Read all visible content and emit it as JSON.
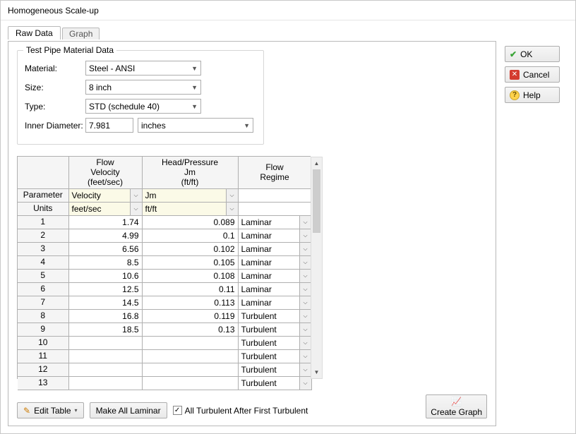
{
  "window": {
    "title": "Homogeneous Scale-up"
  },
  "tabs": {
    "raw_data": "Raw Data",
    "graph": "Graph"
  },
  "group": {
    "title": "Test Pipe Material Data",
    "material_label": "Material:",
    "material_value": "Steel - ANSI",
    "size_label": "Size:",
    "size_value": "8 inch",
    "type_label": "Type:",
    "type_value": "STD (schedule 40)",
    "innerdia_label": "Inner Diameter:",
    "innerdia_value": "7.981",
    "innerdia_units": "inches"
  },
  "table": {
    "headers": {
      "flow_l1": "Flow",
      "flow_l2": "Velocity",
      "flow_l3": "(feet/sec)",
      "head_l1": "Head/Pressure",
      "head_l2": "Jm",
      "head_l3": "(ft/ft)",
      "regime_l1": "Flow",
      "regime_l2": "Regime",
      "parameter": "Parameter",
      "units": "Units"
    },
    "param_row": {
      "flow": "Velocity",
      "head": "Jm"
    },
    "units_row": {
      "flow": "feet/sec",
      "head": "ft/ft"
    },
    "rows": [
      {
        "idx": "1",
        "flow": "1.74",
        "head": "0.089",
        "regime": "Laminar"
      },
      {
        "idx": "2",
        "flow": "4.99",
        "head": "0.1",
        "regime": "Laminar"
      },
      {
        "idx": "3",
        "flow": "6.56",
        "head": "0.102",
        "regime": "Laminar"
      },
      {
        "idx": "4",
        "flow": "8.5",
        "head": "0.105",
        "regime": "Laminar"
      },
      {
        "idx": "5",
        "flow": "10.6",
        "head": "0.108",
        "regime": "Laminar"
      },
      {
        "idx": "6",
        "flow": "12.5",
        "head": "0.11",
        "regime": "Laminar"
      },
      {
        "idx": "7",
        "flow": "14.5",
        "head": "0.113",
        "regime": "Laminar"
      },
      {
        "idx": "8",
        "flow": "16.8",
        "head": "0.119",
        "regime": "Turbulent"
      },
      {
        "idx": "9",
        "flow": "18.5",
        "head": "0.13",
        "regime": "Turbulent"
      },
      {
        "idx": "10",
        "flow": "",
        "head": "",
        "regime": "Turbulent"
      },
      {
        "idx": "11",
        "flow": "",
        "head": "",
        "regime": "Turbulent"
      },
      {
        "idx": "12",
        "flow": "",
        "head": "",
        "regime": "Turbulent"
      },
      {
        "idx": "13",
        "flow": "",
        "head": "",
        "regime": "Turbulent"
      }
    ]
  },
  "buttons": {
    "edit_table": "Edit Table",
    "make_laminar": "Make All Laminar",
    "turb_after_first": "All Turbulent After First Turbulent",
    "create_graph": "Create Graph",
    "ok": "OK",
    "cancel": "Cancel",
    "help": "Help"
  },
  "colors": {
    "param_cell_bg": "#fbfae7",
    "border": "#b0b0b0",
    "header_bg": "#f5f5f5"
  }
}
